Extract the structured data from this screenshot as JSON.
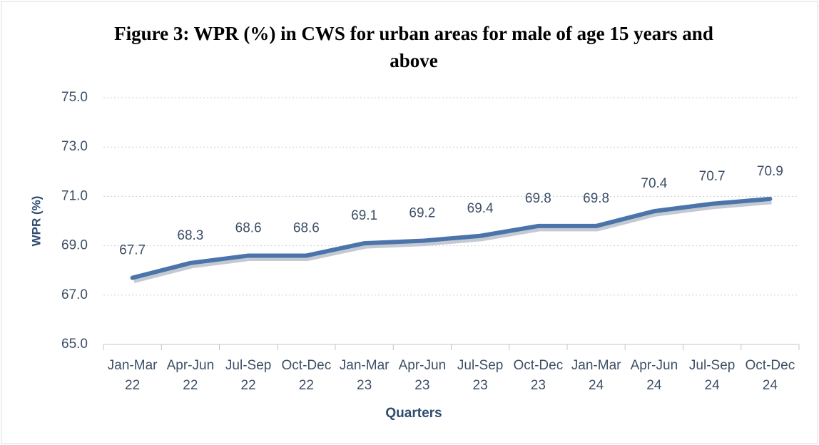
{
  "chart_data": {
    "type": "line",
    "title": "Figure 3: WPR (%) in CWS for urban  areas for male of age 15 years and above",
    "categories": [
      [
        "Jan-Mar",
        "22"
      ],
      [
        "Apr-Jun",
        "22"
      ],
      [
        "Jul-Sep",
        "22"
      ],
      [
        "Oct-Dec",
        "22"
      ],
      [
        "Jan-Mar",
        "23"
      ],
      [
        "Apr-Jun",
        "23"
      ],
      [
        "Jul-Sep",
        "23"
      ],
      [
        "Oct-Dec",
        "23"
      ],
      [
        "Jan-Mar",
        "24"
      ],
      [
        "Apr-Jun",
        "24"
      ],
      [
        "Jul-Sep",
        "24"
      ],
      [
        "Oct-Dec",
        "24"
      ]
    ],
    "series": [
      {
        "name": "WPR (%)",
        "color": "#4a74aa",
        "values": [
          67.7,
          68.3,
          68.6,
          68.6,
          69.1,
          69.2,
          69.4,
          69.8,
          69.8,
          70.4,
          70.7,
          70.9
        ]
      }
    ],
    "xlabel": "Quarters",
    "ylabel": "WPR (%)",
    "ylim": [
      65,
      75
    ],
    "yticks": [
      {
        "value": 65,
        "label": "65.0"
      },
      {
        "value": 67,
        "label": "67.0"
      },
      {
        "value": 69,
        "label": "69.0"
      },
      {
        "value": 71,
        "label": "71.0"
      },
      {
        "value": 73,
        "label": "73.0"
      },
      {
        "value": 75,
        "label": "75.0"
      }
    ],
    "grid": true
  }
}
